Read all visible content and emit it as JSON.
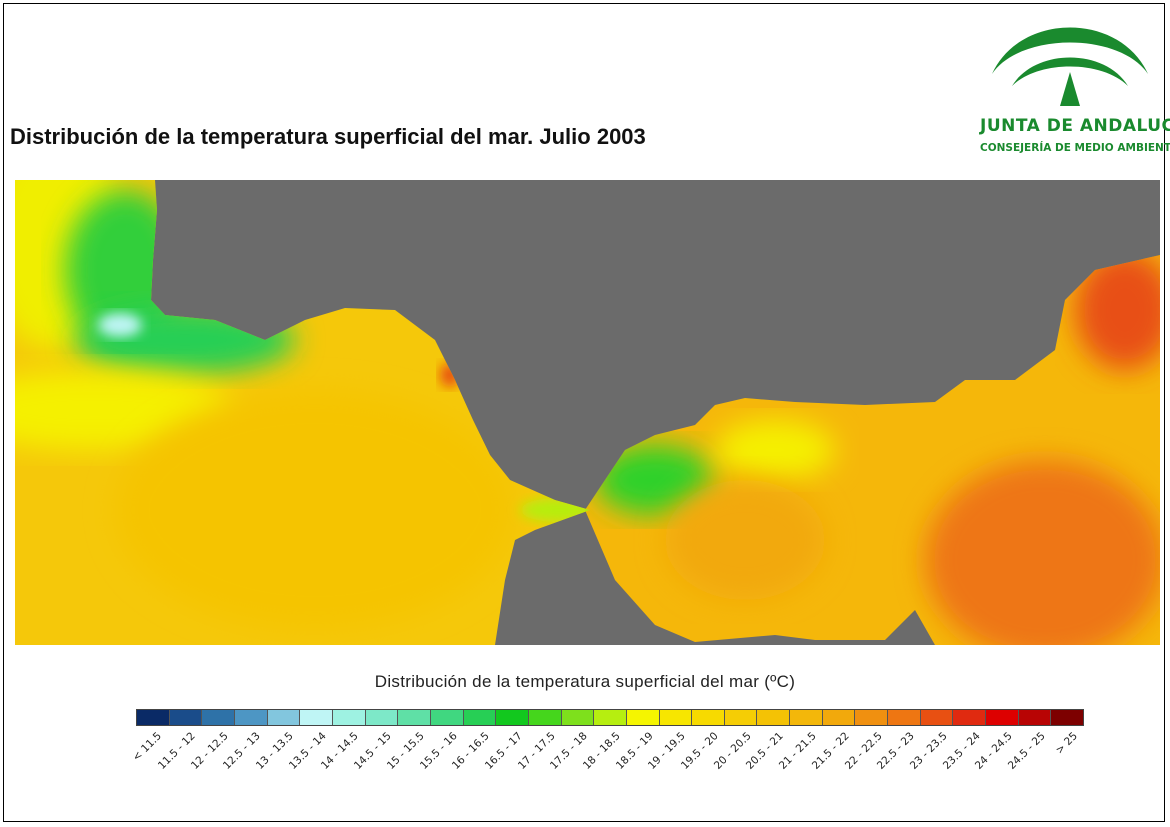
{
  "title": "Distribución de la temperatura superficial del mar. Julio 2003",
  "logo": {
    "name": "JUNTA DE ANDALUCIA",
    "subtitle": "CONSEJERÍA DE MEDIO AMBIENTE",
    "color": "#1a8a2e"
  },
  "map": {
    "land_color": "#6b6b6b",
    "units": "°C"
  },
  "legend": {
    "title": "Distribución de la temperatura superficial del mar (ºC)",
    "classes": [
      {
        "label": "< 11.5",
        "color": "#0a2a66"
      },
      {
        "label": "11.5 - 12",
        "color": "#1a4c8a"
      },
      {
        "label": "12 - 12.5",
        "color": "#2e72a8"
      },
      {
        "label": "12.5 - 13",
        "color": "#4d96c4"
      },
      {
        "label": "13 - 13.5",
        "color": "#82c6de"
      },
      {
        "label": "13.5 - 14",
        "color": "#bff5f5"
      },
      {
        "label": "14 - 14.5",
        "color": "#9ef2e2"
      },
      {
        "label": "14.5 - 15",
        "color": "#7de8c8"
      },
      {
        "label": "15 - 15.5",
        "color": "#5fe0a6"
      },
      {
        "label": "15.5 - 16",
        "color": "#40d780"
      },
      {
        "label": "16 - 16.5",
        "color": "#27cf55"
      },
      {
        "label": "16.5 - 17",
        "color": "#12c81e"
      },
      {
        "label": "17 - 17.5",
        "color": "#45d61c"
      },
      {
        "label": "17.5 - 18",
        "color": "#7ee01c"
      },
      {
        "label": "18 - 18.5",
        "color": "#b6ee10"
      },
      {
        "label": "18.5 - 19",
        "color": "#f5f500"
      },
      {
        "label": "19 - 19.5",
        "color": "#f7e600"
      },
      {
        "label": "19.5 - 20",
        "color": "#f7da00"
      },
      {
        "label": "20 - 20.5",
        "color": "#f5cd05"
      },
      {
        "label": "20.5 - 21",
        "color": "#f4c205"
      },
      {
        "label": "21 - 21.5",
        "color": "#f3b70a"
      },
      {
        "label": "21.5 - 22",
        "color": "#f2a90c"
      },
      {
        "label": "22 - 22.5",
        "color": "#f09010"
      },
      {
        "label": "22.5 - 23",
        "color": "#ee7612"
      },
      {
        "label": "23 - 23.5",
        "color": "#e85012"
      },
      {
        "label": "23.5 - 24",
        "color": "#e02a10"
      },
      {
        "label": "24 - 24.5",
        "color": "#dd0000"
      },
      {
        "label": "24.5 - 25",
        "color": "#b80404"
      },
      {
        "label": "> 25",
        "color": "#7d0000"
      }
    ]
  }
}
